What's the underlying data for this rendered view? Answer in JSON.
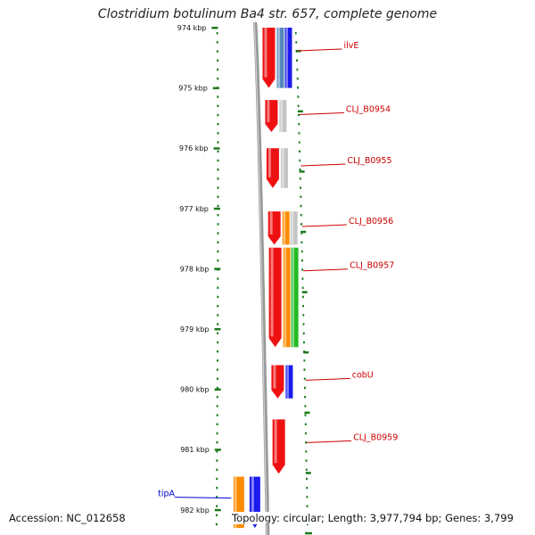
{
  "title": "Clostridium botulinum Ba4 str. 657, complete genome",
  "footer": {
    "accession": "Accession: NC_012658",
    "stats": "Topology: circular; Length: 3,977,794 bp; Genes: 3,799"
  },
  "ruler": {
    "unit": "kbp",
    "ticks": [
      "974 kbp",
      "975 kbp",
      "976 kbp",
      "977 kbp",
      "978 kbp",
      "979 kbp",
      "980 kbp",
      "981 kbp",
      "982 kbp"
    ]
  },
  "colors": {
    "forward_cds": "#ee1111",
    "reverse_blue": "#1a1aee",
    "steel_blue": "#5588bb",
    "grey": "#c4c4c4",
    "orange": "#ff8c00",
    "green": "#22bb22",
    "backbone": "#888888",
    "dots": "#1a7a1a",
    "label_red": "#cc0000",
    "label_blue": "#0000cc"
  },
  "genes": [
    {
      "name": "ilvE",
      "label": "ilvE",
      "start_kbp": 974.0,
      "end_kbp": 975.0,
      "color": "label_red",
      "tracks": [
        {
          "lane": 0,
          "color": "forward_cds"
        },
        {
          "lane": 1,
          "color": "steel_blue"
        },
        {
          "lane": 2,
          "color": "reverse_blue"
        }
      ]
    },
    {
      "name": "CLJ_B0954",
      "label": "CLJ_B0954",
      "start_kbp": 975.2,
      "end_kbp": 975.73,
      "color": "label_red",
      "tracks": [
        {
          "lane": 0,
          "color": "forward_cds"
        },
        {
          "lane": 1,
          "color": "grey"
        }
      ]
    },
    {
      "name": "CLJ_B0955",
      "label": "CLJ_B0955",
      "start_kbp": 976.0,
      "end_kbp": 976.66,
      "color": "label_red",
      "tracks": [
        {
          "lane": 0,
          "color": "forward_cds"
        },
        {
          "lane": 1,
          "color": "grey"
        }
      ]
    },
    {
      "name": "CLJ_B0956",
      "label": "CLJ_B0956",
      "start_kbp": 977.05,
      "end_kbp": 977.6,
      "color": "label_red",
      "tracks": [
        {
          "lane": 0,
          "color": "forward_cds"
        },
        {
          "lane": 1,
          "color": "orange"
        },
        {
          "lane": 2,
          "color": "grey"
        }
      ]
    },
    {
      "name": "CLJ_B0957",
      "label": "CLJ_B0957",
      "start_kbp": 977.65,
      "end_kbp": 979.3,
      "color": "label_red",
      "tracks": [
        {
          "lane": 0,
          "color": "forward_cds"
        },
        {
          "lane": 1,
          "color": "orange"
        },
        {
          "lane": 2,
          "color": "green"
        }
      ]
    },
    {
      "name": "cobU",
      "label": "cobU",
      "start_kbp": 979.6,
      "end_kbp": 980.15,
      "color": "label_red",
      "tracks": [
        {
          "lane": 0,
          "color": "forward_cds"
        },
        {
          "lane": 1,
          "color": "reverse_blue"
        }
      ]
    },
    {
      "name": "CLJ_B0959",
      "label": "CLJ_B0959",
      "start_kbp": 980.5,
      "end_kbp": 981.4,
      "color": "label_red",
      "tracks": [
        {
          "lane": 0,
          "color": "forward_cds"
        }
      ]
    },
    {
      "name": "tipA",
      "label": "tipA",
      "start_kbp": 981.45,
      "end_kbp": 982.3,
      "color": "label_blue",
      "side": "left",
      "tracks": [
        {
          "lane": -2,
          "color": "orange"
        },
        {
          "lane": -1,
          "color": "reverse_blue"
        }
      ]
    }
  ]
}
